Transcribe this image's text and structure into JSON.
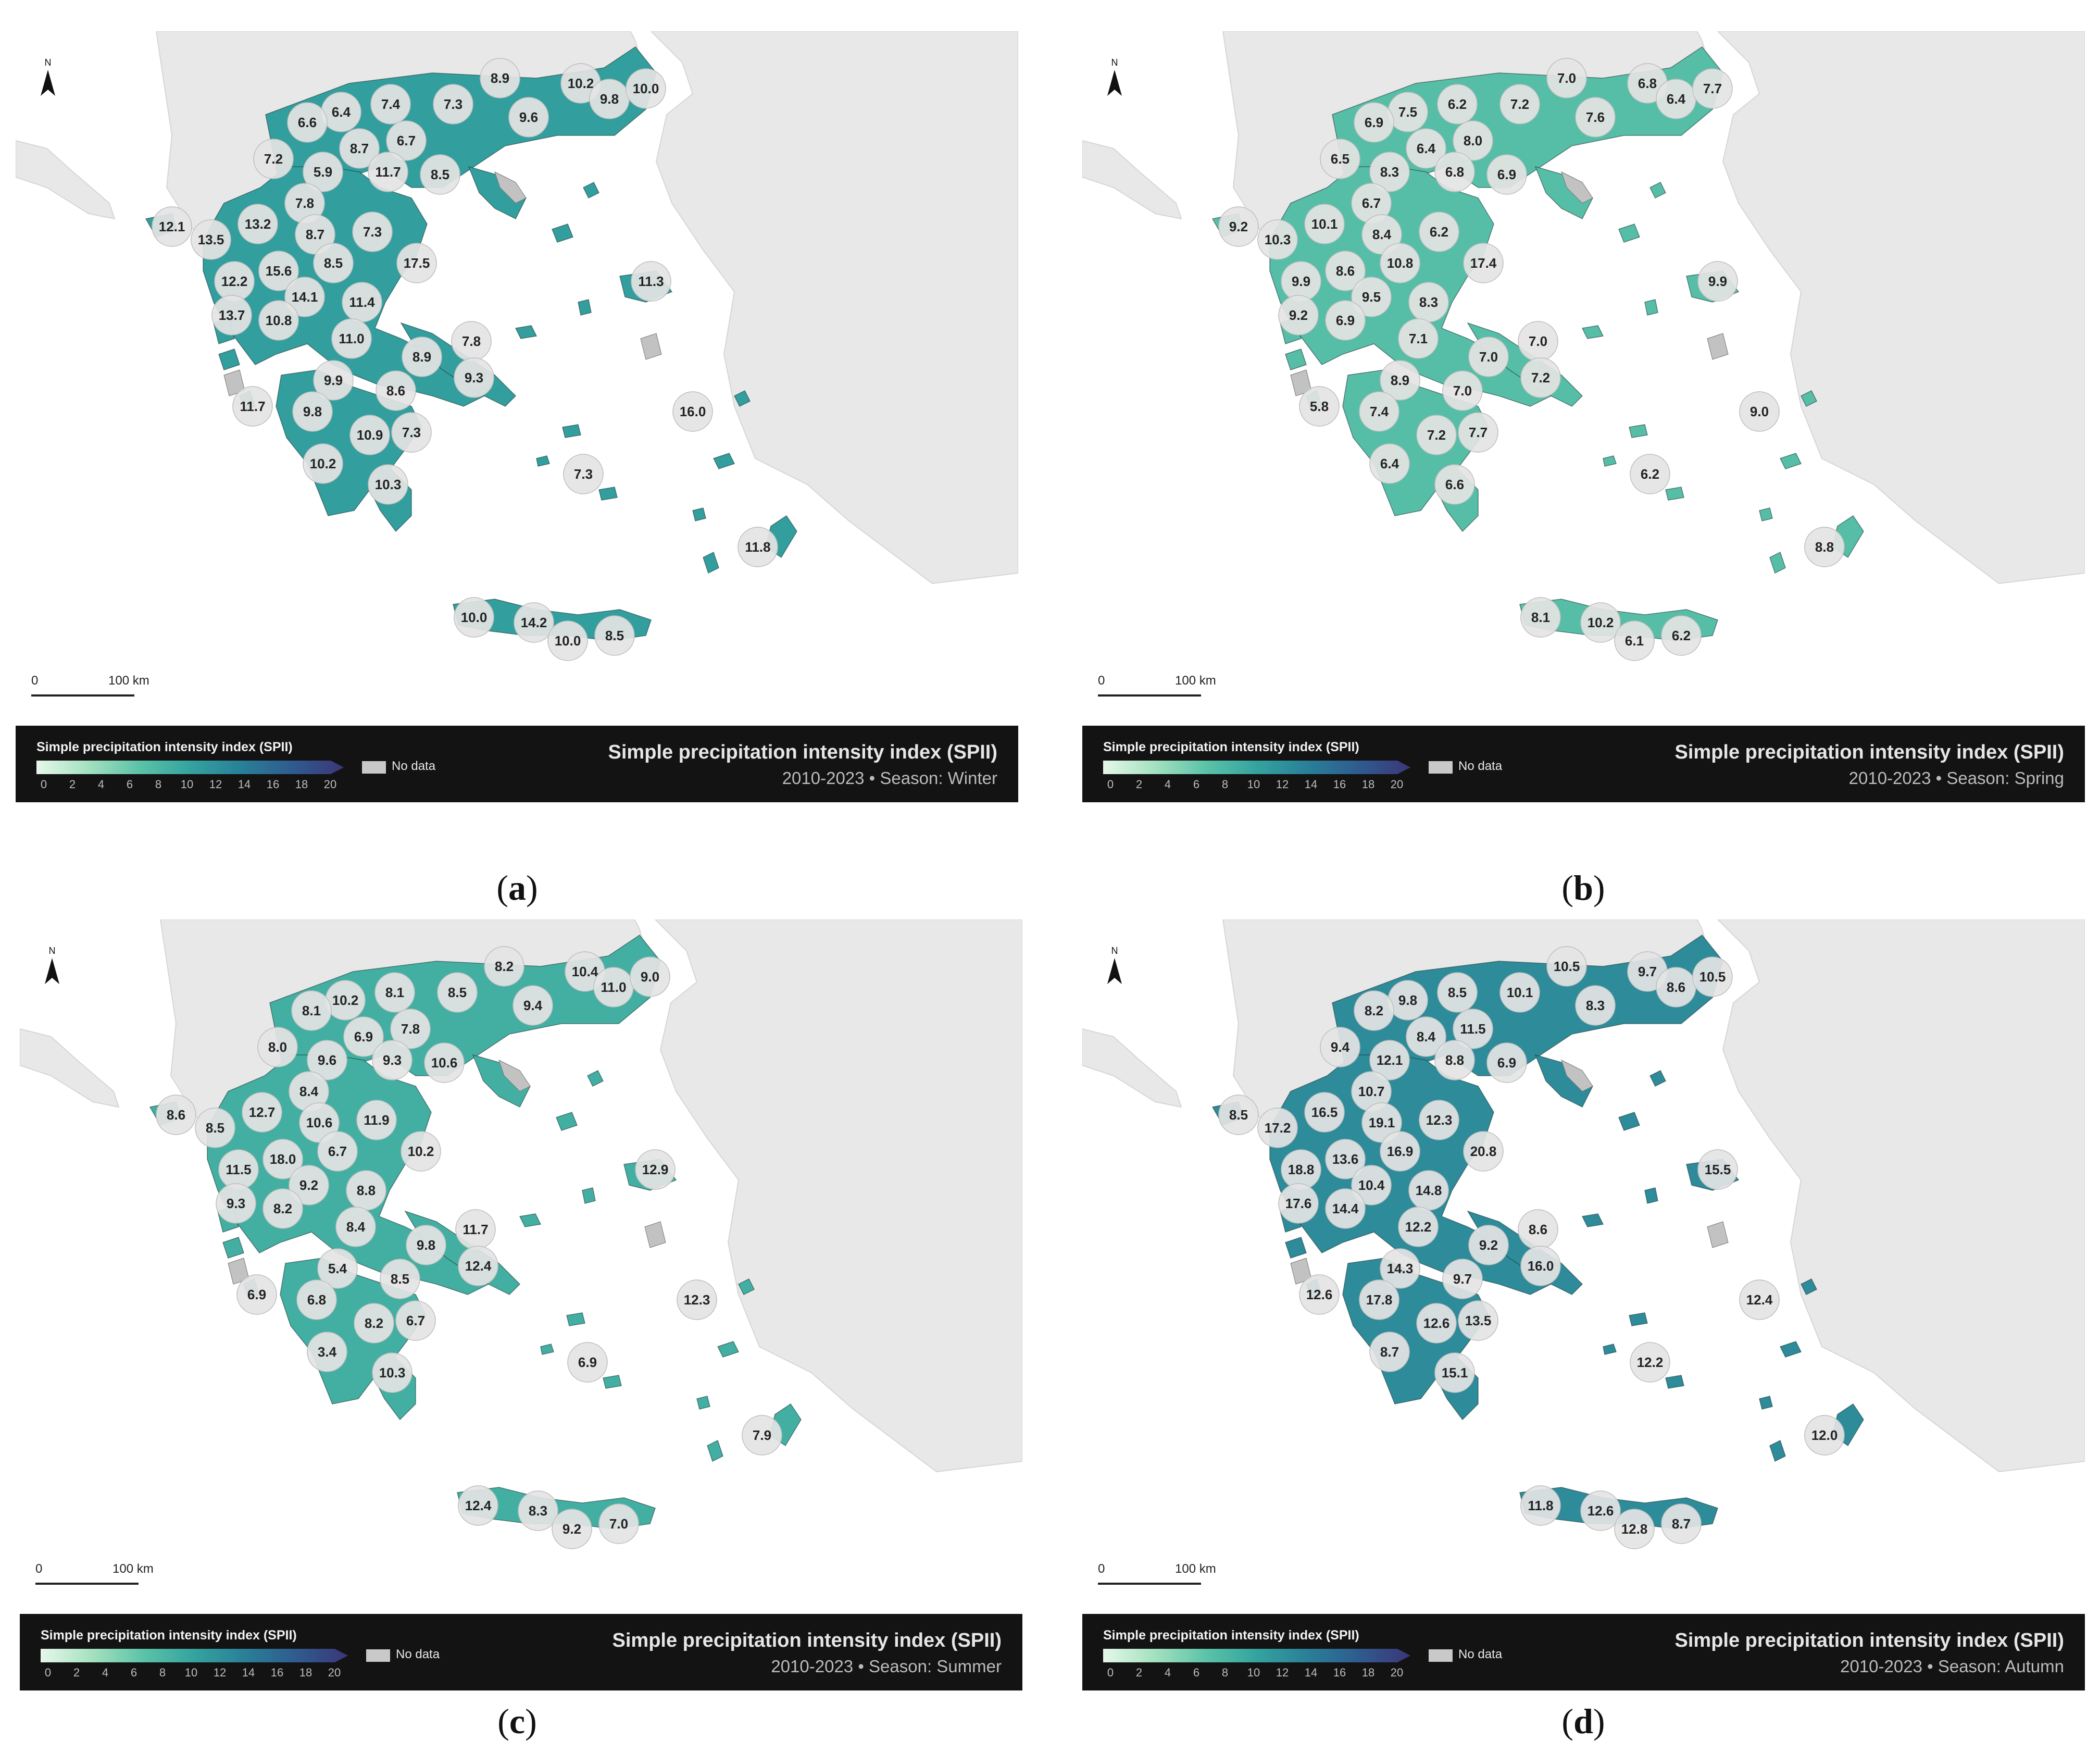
{
  "legend": {
    "title": "Simple precipitation intensity index (SPII)",
    "ticks": [
      "0",
      "2",
      "4",
      "6",
      "8",
      "10",
      "12",
      "14",
      "16",
      "18",
      "20"
    ],
    "nodata_label": "No data",
    "ramp_colors": [
      "#e6f7ea",
      "#a4e1c0",
      "#5cc3a8",
      "#34a39f",
      "#297f98",
      "#2f5b8f",
      "#3b3679"
    ]
  },
  "map_common": {
    "north_label": "N",
    "scale_start": "0",
    "scale_end": "100 km",
    "main_title": "Simple precipitation intensity index (SPII)",
    "land_color": "#e8e8e8",
    "sea_color": "#ffffff",
    "nodata_color": "#c2c2c2"
  },
  "panels": [
    {
      "id": "a",
      "caption_letter": "a",
      "subtitle": "2010-2023 • Season: Winter",
      "fill_value": 10.5,
      "labels": [
        "8.9",
        "10.2",
        "9.8",
        "10.0",
        "7.3",
        "9.6",
        "6.4",
        "7.4",
        "6.6",
        "6.7",
        "8.7",
        "11.7",
        "7.2",
        "5.9",
        "8.5",
        "7.8",
        "13.2",
        "12.1",
        "13.5",
        "8.7",
        "7.3",
        "17.5",
        "15.6",
        "8.5",
        "12.2",
        "14.1",
        "11.4",
        "11.3",
        "13.7",
        "10.8",
        "11.0",
        "7.8",
        "8.9",
        "9.3",
        "9.9",
        "8.6",
        "11.7",
        "9.8",
        "10.9",
        "7.3",
        "16.0",
        "10.2",
        "10.3",
        "7.3",
        "11.8",
        "10.0",
        "14.2",
        "10.0",
        "8.5"
      ]
    },
    {
      "id": "b",
      "caption_letter": "b",
      "subtitle": "2010-2023 • Season: Spring",
      "fill_value": 7.2,
      "labels": [
        "7.0",
        "6.8",
        "6.4",
        "7.7",
        "7.2",
        "7.6",
        "7.5",
        "6.2",
        "6.9",
        "8.0",
        "6.4",
        "6.8",
        "6.5",
        "8.3",
        "6.9",
        "6.7",
        "10.1",
        "9.2",
        "10.3",
        "8.4",
        "6.2",
        "17.4",
        "8.6",
        "10.8",
        "9.9",
        "9.5",
        "8.3",
        "9.9",
        "9.2",
        "6.9",
        "7.1",
        "7.0",
        "7.0",
        "7.2",
        "8.9",
        "7.0",
        "5.8",
        "7.4",
        "7.2",
        "7.7",
        "9.0",
        "6.4",
        "6.6",
        "6.2",
        "8.8",
        "8.1",
        "10.2",
        "6.1",
        "6.2"
      ]
    },
    {
      "id": "c",
      "caption_letter": "c",
      "subtitle": "2010-2023 • Season: Summer",
      "fill_value": 8.8,
      "labels": [
        "8.2",
        "10.4",
        "11.0",
        "9.0",
        "8.5",
        "9.4",
        "10.2",
        "8.1",
        "8.1",
        "7.8",
        "6.9",
        "9.3",
        "8.0",
        "9.6",
        "10.6",
        "8.4",
        "12.7",
        "8.6",
        "8.5",
        "10.6",
        "11.9",
        "10.2",
        "18.0",
        "6.7",
        "11.5",
        "9.2",
        "8.8",
        "12.9",
        "9.3",
        "8.2",
        "8.4",
        "11.7",
        "9.8",
        "12.4",
        "5.4",
        "8.5",
        "6.9",
        "6.8",
        "8.2",
        "6.7",
        "12.3",
        "3.4",
        "10.3",
        "6.9",
        "7.9",
        "12.4",
        "8.3",
        "9.2",
        "7.0"
      ]
    },
    {
      "id": "d",
      "caption_letter": "d",
      "subtitle": "2010-2023 • Season: Autumn",
      "fill_value": 12.2,
      "labels": [
        "10.5",
        "9.7",
        "8.6",
        "10.5",
        "10.1",
        "8.3",
        "9.8",
        "8.5",
        "8.2",
        "11.5",
        "8.4",
        "8.8",
        "9.4",
        "12.1",
        "6.9",
        "10.7",
        "16.5",
        "8.5",
        "17.2",
        "19.1",
        "12.3",
        "20.8",
        "13.6",
        "16.9",
        "18.8",
        "10.4",
        "14.8",
        "15.5",
        "17.6",
        "14.4",
        "12.2",
        "8.6",
        "9.2",
        "16.0",
        "14.3",
        "9.7",
        "12.6",
        "17.8",
        "12.6",
        "13.5",
        "12.4",
        "8.7",
        "15.1",
        "12.2",
        "12.0",
        "11.8",
        "12.6",
        "12.8",
        "8.7"
      ]
    }
  ]
}
